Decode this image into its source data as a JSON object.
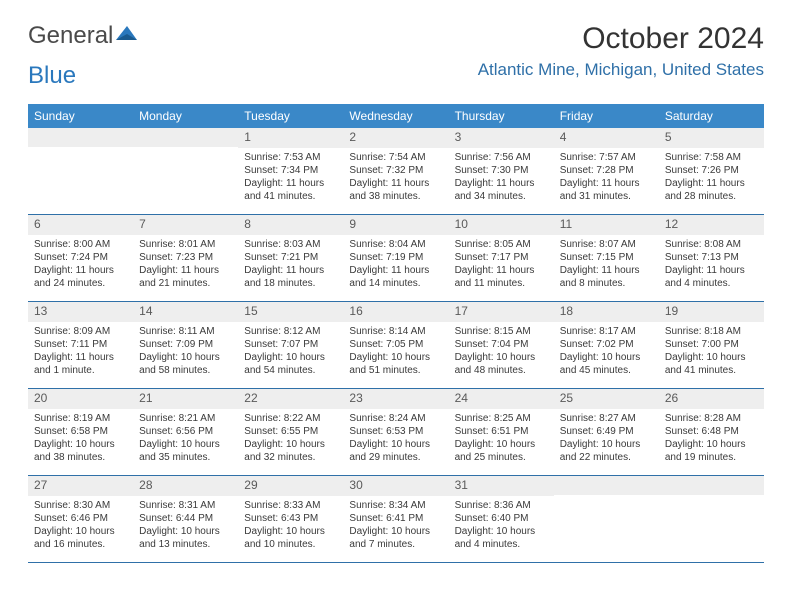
{
  "logo": {
    "text_gray": "General",
    "text_blue": "Blue"
  },
  "title": "October 2024",
  "location": "Atlantic Mine, Michigan, United States",
  "colors": {
    "header_bg": "#3a88c8",
    "header_text": "#ffffff",
    "accent": "#2f70a8",
    "daynum_bg": "#eeeeee",
    "text": "#333333",
    "logo_gray": "#4a4a4a",
    "logo_blue": "#2a78bd"
  },
  "day_names": [
    "Sunday",
    "Monday",
    "Tuesday",
    "Wednesday",
    "Thursday",
    "Friday",
    "Saturday"
  ],
  "weeks": [
    [
      {
        "n": "",
        "sr": "",
        "ss": "",
        "dl": ""
      },
      {
        "n": "",
        "sr": "",
        "ss": "",
        "dl": ""
      },
      {
        "n": "1",
        "sr": "Sunrise: 7:53 AM",
        "ss": "Sunset: 7:34 PM",
        "dl": "Daylight: 11 hours and 41 minutes."
      },
      {
        "n": "2",
        "sr": "Sunrise: 7:54 AM",
        "ss": "Sunset: 7:32 PM",
        "dl": "Daylight: 11 hours and 38 minutes."
      },
      {
        "n": "3",
        "sr": "Sunrise: 7:56 AM",
        "ss": "Sunset: 7:30 PM",
        "dl": "Daylight: 11 hours and 34 minutes."
      },
      {
        "n": "4",
        "sr": "Sunrise: 7:57 AM",
        "ss": "Sunset: 7:28 PM",
        "dl": "Daylight: 11 hours and 31 minutes."
      },
      {
        "n": "5",
        "sr": "Sunrise: 7:58 AM",
        "ss": "Sunset: 7:26 PM",
        "dl": "Daylight: 11 hours and 28 minutes."
      }
    ],
    [
      {
        "n": "6",
        "sr": "Sunrise: 8:00 AM",
        "ss": "Sunset: 7:24 PM",
        "dl": "Daylight: 11 hours and 24 minutes."
      },
      {
        "n": "7",
        "sr": "Sunrise: 8:01 AM",
        "ss": "Sunset: 7:23 PM",
        "dl": "Daylight: 11 hours and 21 minutes."
      },
      {
        "n": "8",
        "sr": "Sunrise: 8:03 AM",
        "ss": "Sunset: 7:21 PM",
        "dl": "Daylight: 11 hours and 18 minutes."
      },
      {
        "n": "9",
        "sr": "Sunrise: 8:04 AM",
        "ss": "Sunset: 7:19 PM",
        "dl": "Daylight: 11 hours and 14 minutes."
      },
      {
        "n": "10",
        "sr": "Sunrise: 8:05 AM",
        "ss": "Sunset: 7:17 PM",
        "dl": "Daylight: 11 hours and 11 minutes."
      },
      {
        "n": "11",
        "sr": "Sunrise: 8:07 AM",
        "ss": "Sunset: 7:15 PM",
        "dl": "Daylight: 11 hours and 8 minutes."
      },
      {
        "n": "12",
        "sr": "Sunrise: 8:08 AM",
        "ss": "Sunset: 7:13 PM",
        "dl": "Daylight: 11 hours and 4 minutes."
      }
    ],
    [
      {
        "n": "13",
        "sr": "Sunrise: 8:09 AM",
        "ss": "Sunset: 7:11 PM",
        "dl": "Daylight: 11 hours and 1 minute."
      },
      {
        "n": "14",
        "sr": "Sunrise: 8:11 AM",
        "ss": "Sunset: 7:09 PM",
        "dl": "Daylight: 10 hours and 58 minutes."
      },
      {
        "n": "15",
        "sr": "Sunrise: 8:12 AM",
        "ss": "Sunset: 7:07 PM",
        "dl": "Daylight: 10 hours and 54 minutes."
      },
      {
        "n": "16",
        "sr": "Sunrise: 8:14 AM",
        "ss": "Sunset: 7:05 PM",
        "dl": "Daylight: 10 hours and 51 minutes."
      },
      {
        "n": "17",
        "sr": "Sunrise: 8:15 AM",
        "ss": "Sunset: 7:04 PM",
        "dl": "Daylight: 10 hours and 48 minutes."
      },
      {
        "n": "18",
        "sr": "Sunrise: 8:17 AM",
        "ss": "Sunset: 7:02 PM",
        "dl": "Daylight: 10 hours and 45 minutes."
      },
      {
        "n": "19",
        "sr": "Sunrise: 8:18 AM",
        "ss": "Sunset: 7:00 PM",
        "dl": "Daylight: 10 hours and 41 minutes."
      }
    ],
    [
      {
        "n": "20",
        "sr": "Sunrise: 8:19 AM",
        "ss": "Sunset: 6:58 PM",
        "dl": "Daylight: 10 hours and 38 minutes."
      },
      {
        "n": "21",
        "sr": "Sunrise: 8:21 AM",
        "ss": "Sunset: 6:56 PM",
        "dl": "Daylight: 10 hours and 35 minutes."
      },
      {
        "n": "22",
        "sr": "Sunrise: 8:22 AM",
        "ss": "Sunset: 6:55 PM",
        "dl": "Daylight: 10 hours and 32 minutes."
      },
      {
        "n": "23",
        "sr": "Sunrise: 8:24 AM",
        "ss": "Sunset: 6:53 PM",
        "dl": "Daylight: 10 hours and 29 minutes."
      },
      {
        "n": "24",
        "sr": "Sunrise: 8:25 AM",
        "ss": "Sunset: 6:51 PM",
        "dl": "Daylight: 10 hours and 25 minutes."
      },
      {
        "n": "25",
        "sr": "Sunrise: 8:27 AM",
        "ss": "Sunset: 6:49 PM",
        "dl": "Daylight: 10 hours and 22 minutes."
      },
      {
        "n": "26",
        "sr": "Sunrise: 8:28 AM",
        "ss": "Sunset: 6:48 PM",
        "dl": "Daylight: 10 hours and 19 minutes."
      }
    ],
    [
      {
        "n": "27",
        "sr": "Sunrise: 8:30 AM",
        "ss": "Sunset: 6:46 PM",
        "dl": "Daylight: 10 hours and 16 minutes."
      },
      {
        "n": "28",
        "sr": "Sunrise: 8:31 AM",
        "ss": "Sunset: 6:44 PM",
        "dl": "Daylight: 10 hours and 13 minutes."
      },
      {
        "n": "29",
        "sr": "Sunrise: 8:33 AM",
        "ss": "Sunset: 6:43 PM",
        "dl": "Daylight: 10 hours and 10 minutes."
      },
      {
        "n": "30",
        "sr": "Sunrise: 8:34 AM",
        "ss": "Sunset: 6:41 PM",
        "dl": "Daylight: 10 hours and 7 minutes."
      },
      {
        "n": "31",
        "sr": "Sunrise: 8:36 AM",
        "ss": "Sunset: 6:40 PM",
        "dl": "Daylight: 10 hours and 4 minutes."
      },
      {
        "n": "",
        "sr": "",
        "ss": "",
        "dl": ""
      },
      {
        "n": "",
        "sr": "",
        "ss": "",
        "dl": ""
      }
    ]
  ]
}
